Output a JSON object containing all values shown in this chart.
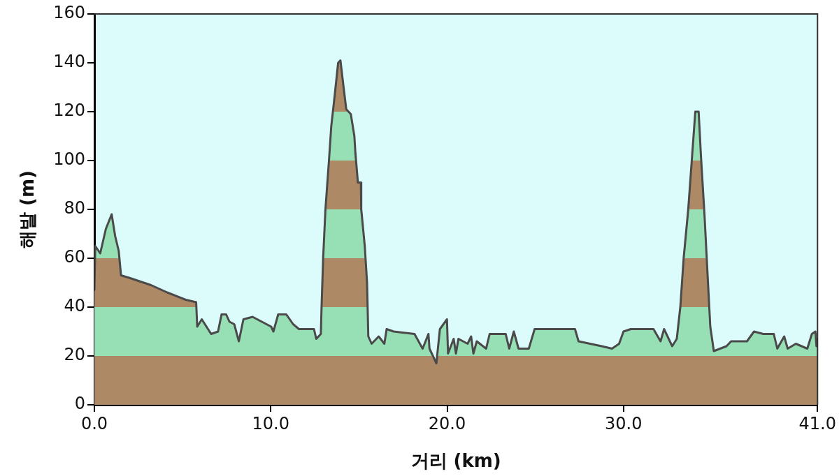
{
  "chart_data": {
    "type": "area",
    "xlabel": "거리 (km)",
    "ylabel": "해발 (m)",
    "x": [
      0,
      0.05,
      0.33,
      0.65,
      0.98,
      1.18,
      1.38,
      1.51,
      1.97,
      3.21,
      4.13,
      5.18,
      5.77,
      5.83,
      6.09,
      6.62,
      7.01,
      7.21,
      7.47,
      7.66,
      7.93,
      8.19,
      8.45,
      8.97,
      10.02,
      10.15,
      10.42,
      10.88,
      11.27,
      11.6,
      12.45,
      12.58,
      12.84,
      12.88,
      12.97,
      13.1,
      13.3,
      13.43,
      13.63,
      13.82,
      13.95,
      14.08,
      14.28,
      14.54,
      14.74,
      14.8,
      14.94,
      15.11,
      15.13,
      15.33,
      15.46,
      15.53,
      15.72,
      16.12,
      16.44,
      16.57,
      16.97,
      18.15,
      18.61,
      18.94,
      19.0,
      19.39,
      19.59,
      19.99,
      20.05,
      20.37,
      20.5,
      20.64,
      21.16,
      21.36,
      21.49,
      21.68,
      22.21,
      22.41,
      23.32,
      23.52,
      23.78,
      24.05,
      24.63,
      24.96,
      27.25,
      27.45,
      28.76,
      29.35,
      29.75,
      30.0,
      30.41,
      31.7,
      32.1,
      32.3,
      32.76,
      33.02,
      33.22,
      33.41,
      33.67,
      33.87,
      34.07,
      34.26,
      34.39,
      34.59,
      34.79,
      34.92,
      35.12,
      35.84,
      36.1,
      37.0,
      37.4,
      37.92,
      38.52,
      38.72,
      39.11,
      39.31,
      39.77,
      40.42,
      40.68,
      40.88,
      40.94,
      41
    ],
    "series": [
      {
        "color": "#4a4a4a",
        "values": [
          47,
          65,
          62,
          72,
          78,
          69,
          63,
          53,
          52,
          49,
          46,
          43,
          42,
          32,
          35,
          29,
          30,
          37,
          37,
          34,
          33,
          26,
          35,
          36,
          32,
          30,
          37,
          37,
          33,
          31,
          31,
          27,
          29,
          40,
          60,
          80,
          100,
          114,
          127,
          140,
          141,
          133,
          121,
          119,
          110,
          103,
          91,
          91,
          80,
          65,
          50,
          28,
          25,
          28,
          25,
          31,
          30,
          29,
          23,
          29,
          23,
          17,
          31,
          35,
          21,
          27,
          21,
          27,
          25,
          28,
          21,
          26,
          23,
          29,
          29,
          23,
          30,
          23,
          23,
          31,
          31,
          26,
          24,
          23,
          25,
          30,
          31,
          31,
          26,
          31,
          24,
          27,
          40,
          60,
          80,
          100,
          120,
          120,
          102,
          78,
          50,
          32,
          22,
          24,
          26,
          26,
          30,
          29,
          29,
          23,
          28,
          23,
          25,
          23,
          29,
          30,
          24,
          27
        ]
      }
    ],
    "xlim": [
      0,
      41
    ],
    "ylim": [
      0,
      160
    ],
    "xticks": [
      {
        "value": 0,
        "label": "0.0"
      },
      {
        "value": 10,
        "label": "10.0"
      },
      {
        "value": 20,
        "label": "20.0"
      },
      {
        "value": 30,
        "label": "30.0"
      },
      {
        "value": 41,
        "label": "41.0"
      }
    ],
    "yticks": [
      0,
      20,
      40,
      60,
      80,
      100,
      120,
      140,
      160
    ],
    "bands": [
      {
        "axis": "y",
        "from": 0,
        "to": 20,
        "color": "#b89168"
      },
      {
        "axis": "y",
        "from": 20,
        "to": 40,
        "color": "#a0f0c0"
      },
      {
        "axis": "y",
        "from": 40,
        "to": 60,
        "color": "#b89168"
      },
      {
        "axis": "y",
        "from": 60,
        "to": 80,
        "color": "#a0f0c0"
      },
      {
        "axis": "y",
        "from": 80,
        "to": 100,
        "color": "#b89168"
      },
      {
        "axis": "y",
        "from": 100,
        "to": 120,
        "color": "#a0f0c0"
      },
      {
        "axis": "y",
        "from": 120,
        "to": 140,
        "color": "#b89168"
      }
    ],
    "grid": false
  }
}
